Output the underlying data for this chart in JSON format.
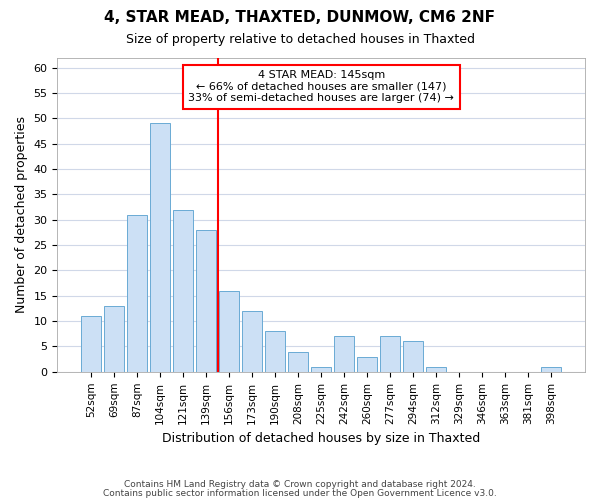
{
  "title1": "4, STAR MEAD, THAXTED, DUNMOW, CM6 2NF",
  "title2": "Size of property relative to detached houses in Thaxted",
  "xlabel": "Distribution of detached houses by size in Thaxted",
  "ylabel": "Number of detached properties",
  "categories": [
    "52sqm",
    "69sqm",
    "87sqm",
    "104sqm",
    "121sqm",
    "139sqm",
    "156sqm",
    "173sqm",
    "190sqm",
    "208sqm",
    "225sqm",
    "242sqm",
    "260sqm",
    "277sqm",
    "294sqm",
    "312sqm",
    "329sqm",
    "346sqm",
    "363sqm",
    "381sqm",
    "398sqm"
  ],
  "values": [
    11,
    13,
    31,
    49,
    32,
    28,
    16,
    12,
    8,
    4,
    1,
    7,
    3,
    7,
    6,
    1,
    0,
    0,
    0,
    0,
    1
  ],
  "bar_color": "#cce0f5",
  "bar_edge_color": "#6aaad4",
  "property_line_x": 5.5,
  "annotation_line1": "4 STAR MEAD: 145sqm",
  "annotation_line2": "← 66% of detached houses are smaller (147)",
  "annotation_line3": "33% of semi-detached houses are larger (74) →",
  "ylim": [
    0,
    62
  ],
  "yticks": [
    0,
    5,
    10,
    15,
    20,
    25,
    30,
    35,
    40,
    45,
    50,
    55,
    60
  ],
  "footer1": "Contains HM Land Registry data © Crown copyright and database right 2024.",
  "footer2": "Contains public sector information licensed under the Open Government Licence v3.0.",
  "bg_color": "#ffffff",
  "plot_bg_color": "#ffffff",
  "grid_color": "#d0d8e8"
}
